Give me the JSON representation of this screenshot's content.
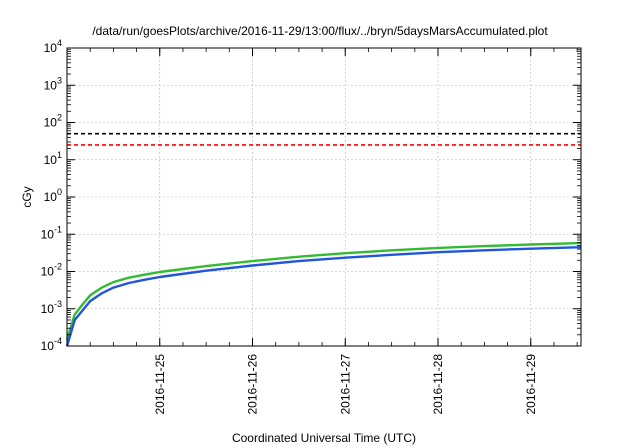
{
  "chart_data": {
    "type": "line",
    "title": "/data/run/goesPlots/archive/2016-11-29/13:00/flux/../bryn/5daysMarsAccumulated.plot",
    "xlabel": "Coordinated Universal Time (UTC)",
    "ylabel": "cGy",
    "y_scale": "log",
    "ylim": [
      0.0001,
      10000
    ],
    "xlim": [
      "2016-11-24 00:00",
      "2016-11-29 13:00"
    ],
    "x_ticks": [
      "2016-11-25",
      "2016-11-26",
      "2016-11-27",
      "2016-11-28",
      "2016-11-29"
    ],
    "y_ticks": [
      {
        "base": "10",
        "exp": "-4"
      },
      {
        "base": "10",
        "exp": "-3"
      },
      {
        "base": "10",
        "exp": "-2"
      },
      {
        "base": "10",
        "exp": "-1"
      },
      {
        "base": "10",
        "exp": "0"
      },
      {
        "base": "10",
        "exp": "1"
      },
      {
        "base": "10",
        "exp": "2"
      },
      {
        "base": "10",
        "exp": "3"
      },
      {
        "base": "10",
        "exp": "4"
      }
    ],
    "grid": true,
    "series": [
      {
        "color": "#33bb33",
        "style": "solid",
        "x": [
          "2016-11-24 00:00",
          "2016-11-24 02:00",
          "2016-11-24 04:00",
          "2016-11-24 06:00",
          "2016-11-24 09:00",
          "2016-11-24 12:00",
          "2016-11-24 16:00",
          "2016-11-24 20:00",
          "2016-11-25 00:00",
          "2016-11-25 12:00",
          "2016-11-26 00:00",
          "2016-11-26 12:00",
          "2016-11-27 00:00",
          "2016-11-27 12:00",
          "2016-11-28 00:00",
          "2016-11-28 12:00",
          "2016-11-29 00:00",
          "2016-11-29 13:00"
        ],
        "y": [
          0.00015,
          0.0007,
          0.0013,
          0.0023,
          0.0037,
          0.0052,
          0.0068,
          0.0082,
          0.0097,
          0.014,
          0.019,
          0.025,
          0.031,
          0.037,
          0.043,
          0.048,
          0.053,
          0.058
        ]
      },
      {
        "color": "#2255dd",
        "style": "solid",
        "x": [
          "2016-11-24 00:00",
          "2016-11-24 02:00",
          "2016-11-24 04:00",
          "2016-11-24 06:00",
          "2016-11-24 09:00",
          "2016-11-24 12:00",
          "2016-11-24 16:00",
          "2016-11-24 20:00",
          "2016-11-25 00:00",
          "2016-11-25 12:00",
          "2016-11-26 00:00",
          "2016-11-26 12:00",
          "2016-11-27 00:00",
          "2016-11-27 12:00",
          "2016-11-28 00:00",
          "2016-11-28 12:00",
          "2016-11-29 00:00",
          "2016-11-29 13:00"
        ],
        "y": [
          0.0001,
          0.0005,
          0.0009,
          0.0016,
          0.0026,
          0.0037,
          0.0049,
          0.006,
          0.0071,
          0.0105,
          0.0145,
          0.019,
          0.0235,
          0.028,
          0.033,
          0.037,
          0.041,
          0.045
        ]
      },
      {
        "color": "#000000",
        "style": "dashed",
        "x": [
          "2016-11-24 00:00",
          "2016-11-29 13:00"
        ],
        "y": [
          50,
          50
        ]
      },
      {
        "color": "#ff0000",
        "style": "dashed",
        "x": [
          "2016-11-24 00:00",
          "2016-11-29 13:00"
        ],
        "y": [
          25,
          25
        ]
      }
    ]
  }
}
